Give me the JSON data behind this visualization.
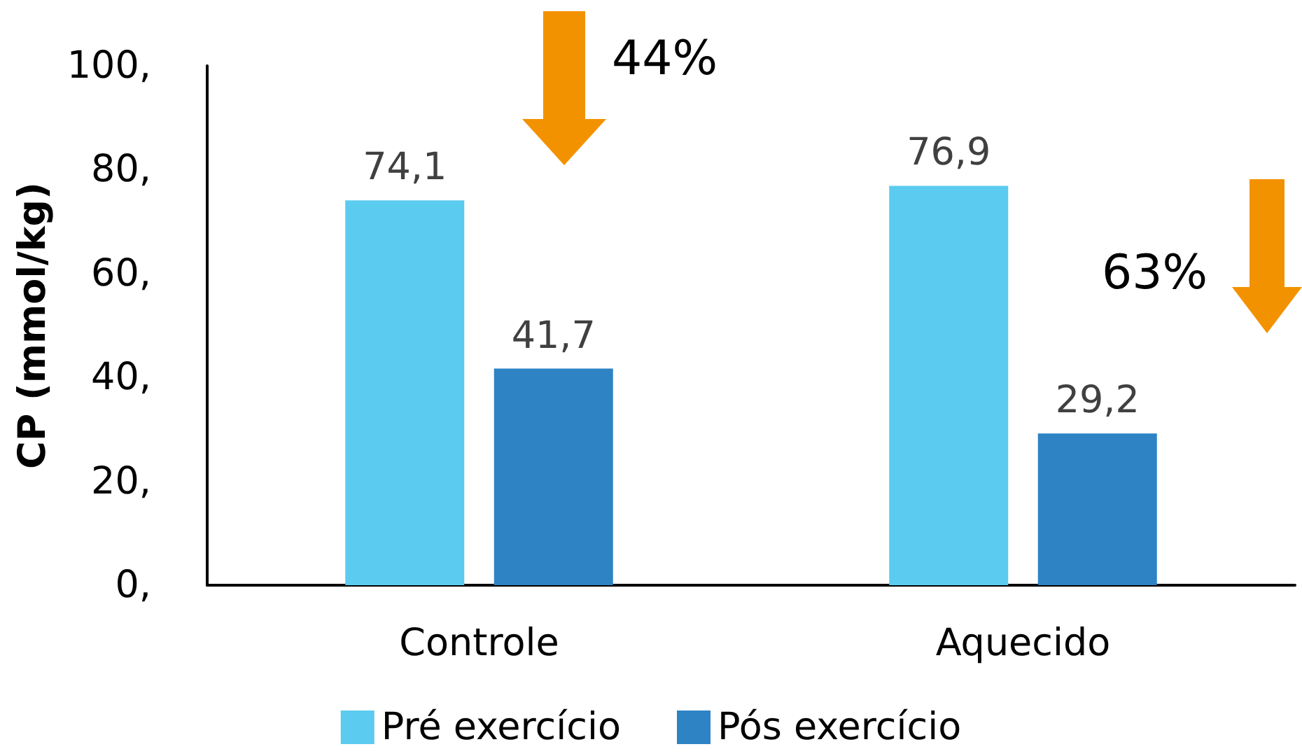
{
  "chart_data": {
    "type": "bar",
    "ylabel": "CP (mmol/kg)",
    "categories": [
      "Controle",
      "Aquecido"
    ],
    "series": [
      {
        "name": "Pré exercício",
        "color": "#5bcbef",
        "values": [
          74.1,
          76.9
        ],
        "value_labels": [
          "74,1",
          "76,9"
        ]
      },
      {
        "name": "Pós exercício",
        "color": "#2e83c4",
        "values": [
          41.7,
          29.2
        ],
        "value_labels": [
          "41,7",
          "29,2"
        ]
      }
    ],
    "ylim": [
      0,
      100
    ],
    "yticks": [
      {
        "value": 0,
        "label": "0,"
      },
      {
        "value": 20,
        "label": "20,"
      },
      {
        "value": 40,
        "label": "40,"
      },
      {
        "value": 60,
        "label": "60,"
      },
      {
        "value": 80,
        "label": "80,"
      },
      {
        "value": 100,
        "label": "100,"
      }
    ],
    "grid": false,
    "legend": "bottom",
    "annotations": [
      "44%",
      "63%"
    ]
  }
}
